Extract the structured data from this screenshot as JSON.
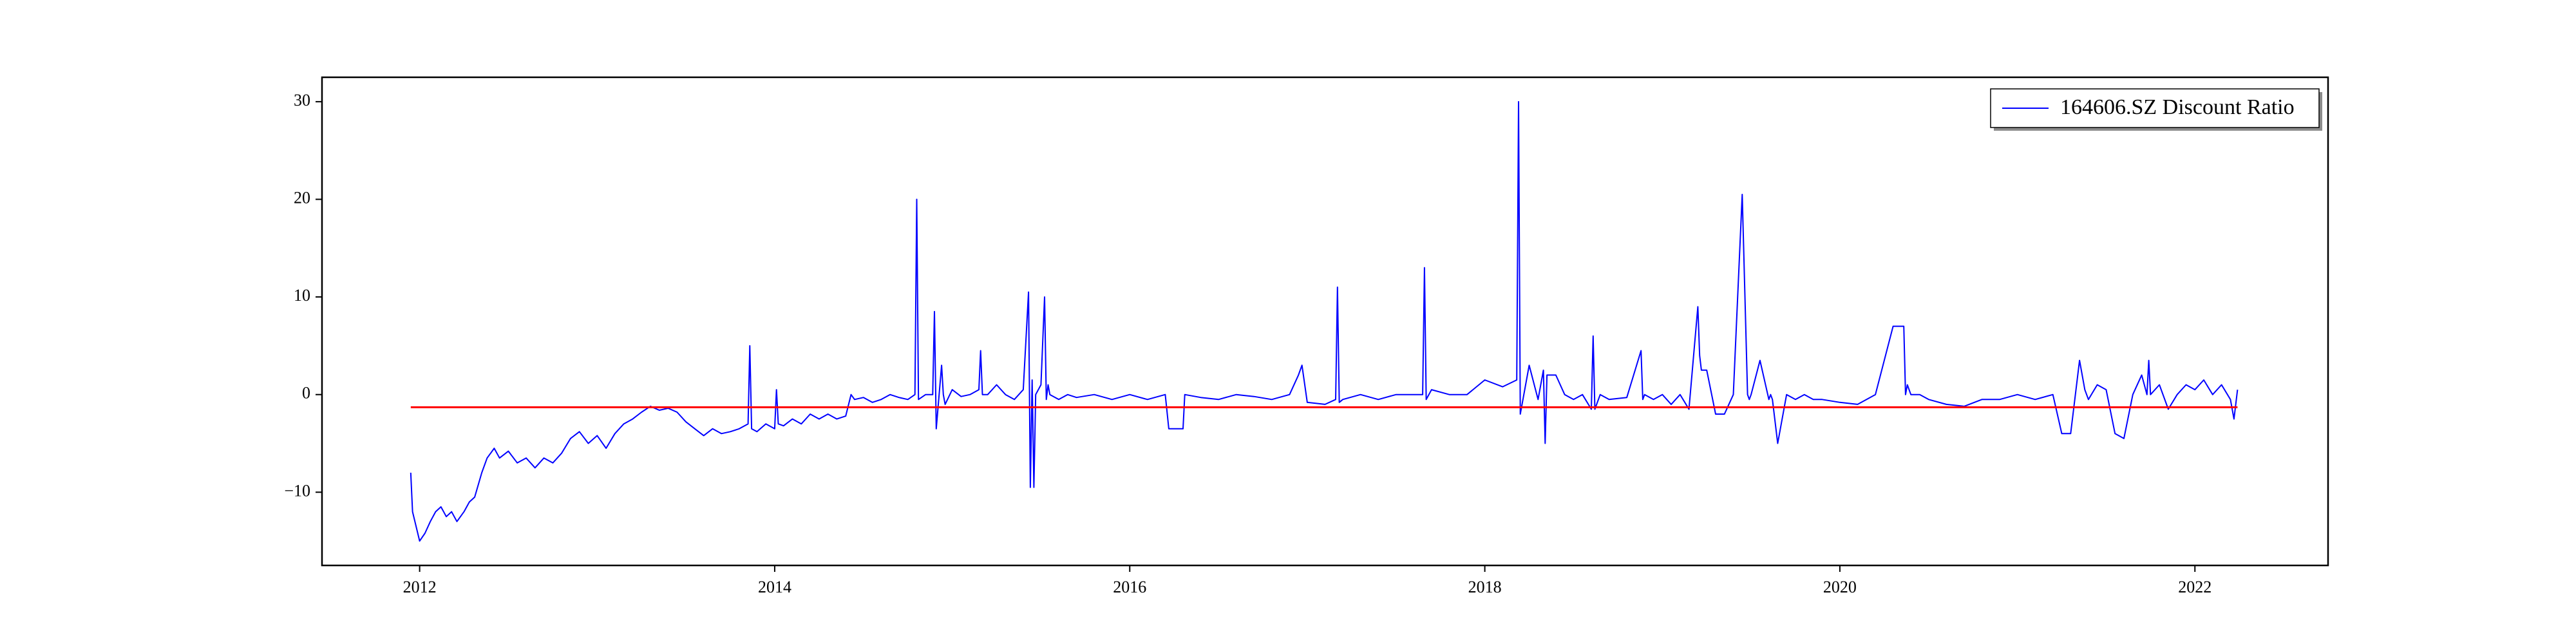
{
  "chart_data": {
    "type": "line",
    "title": "",
    "xlabel": "",
    "ylabel": "",
    "xlim": [
      2011.45,
      2022.75
    ],
    "ylim": [
      -17.5,
      32.5
    ],
    "x_ticks": [
      2012,
      2014,
      2016,
      2018,
      2020,
      2022
    ],
    "x_tick_labels": [
      "2012",
      "2014",
      "2016",
      "2018",
      "2020",
      "2022"
    ],
    "y_ticks": [
      -10,
      0,
      10,
      20,
      30
    ],
    "y_tick_labels": [
      "−10",
      "0",
      "10",
      "20",
      "30"
    ],
    "grid": false,
    "legend": {
      "position": "top-right",
      "entries": [
        "164606.SZ Discount Ratio"
      ]
    },
    "colors": {
      "series": "#0000ff",
      "reference": "#ff0000",
      "axes": "#000000"
    },
    "series": [
      {
        "name": "164606.SZ Discount Ratio",
        "x": [
          2011.95,
          2011.96,
          2011.98,
          2012.0,
          2012.03,
          2012.06,
          2012.09,
          2012.12,
          2012.15,
          2012.18,
          2012.21,
          2012.25,
          2012.28,
          2012.31,
          2012.35,
          2012.38,
          2012.42,
          2012.45,
          2012.5,
          2012.55,
          2012.6,
          2012.65,
          2012.7,
          2012.75,
          2012.8,
          2012.85,
          2012.9,
          2012.95,
          2013.0,
          2013.05,
          2013.1,
          2013.15,
          2013.2,
          2013.25,
          2013.3,
          2013.35,
          2013.4,
          2013.45,
          2013.5,
          2013.55,
          2013.6,
          2013.65,
          2013.7,
          2013.75,
          2013.8,
          2013.85,
          2013.86,
          2013.87,
          2013.9,
          2013.95,
          2014.0,
          2014.01,
          2014.02,
          2014.05,
          2014.1,
          2014.15,
          2014.2,
          2014.25,
          2014.3,
          2014.35,
          2014.4,
          2014.43,
          2014.45,
          2014.5,
          2014.55,
          2014.6,
          2014.65,
          2014.7,
          2014.75,
          2014.79,
          2014.8,
          2014.81,
          2014.85,
          2014.89,
          2014.9,
          2014.91,
          2014.94,
          2014.95,
          2014.96,
          2015.0,
          2015.05,
          2015.1,
          2015.15,
          2015.16,
          2015.17,
          2015.2,
          2015.25,
          2015.3,
          2015.35,
          2015.4,
          2015.43,
          2015.44,
          2015.45,
          2015.46,
          2015.47,
          2015.5,
          2015.52,
          2015.53,
          2015.54,
          2015.55,
          2015.6,
          2015.65,
          2015.7,
          2015.8,
          2015.9,
          2016.0,
          2016.1,
          2016.2,
          2016.22,
          2016.3,
          2016.31,
          2016.4,
          2016.5,
          2016.6,
          2016.7,
          2016.8,
          2016.9,
          2016.95,
          2016.97,
          2017.0,
          2017.1,
          2017.16,
          2017.17,
          2017.18,
          2017.2,
          2017.3,
          2017.4,
          2017.5,
          2017.6,
          2017.65,
          2017.66,
          2017.67,
          2017.7,
          2017.8,
          2017.9,
          2018.0,
          2018.1,
          2018.18,
          2018.19,
          2018.2,
          2018.25,
          2018.3,
          2018.33,
          2018.34,
          2018.35,
          2018.4,
          2018.45,
          2018.5,
          2018.55,
          2018.6,
          2018.61,
          2018.62,
          2018.65,
          2018.7,
          2018.8,
          2018.88,
          2018.89,
          2018.9,
          2018.95,
          2019.0,
          2019.05,
          2019.1,
          2019.15,
          2019.2,
          2019.21,
          2019.22,
          2019.25,
          2019.3,
          2019.35,
          2019.4,
          2019.45,
          2019.48,
          2019.49,
          2019.5,
          2019.55,
          2019.6,
          2019.61,
          2019.62,
          2019.65,
          2019.7,
          2019.75,
          2019.8,
          2019.85,
          2019.9,
          2020.0,
          2020.1,
          2020.2,
          2020.3,
          2020.36,
          2020.37,
          2020.38,
          2020.4,
          2020.45,
          2020.5,
          2020.6,
          2020.7,
          2020.8,
          2020.9,
          2021.0,
          2021.1,
          2021.2,
          2021.25,
          2021.3,
          2021.35,
          2021.38,
          2021.39,
          2021.4,
          2021.45,
          2021.5,
          2021.55,
          2021.6,
          2021.65,
          2021.7,
          2021.73,
          2021.74,
          2021.75,
          2021.8,
          2021.85,
          2021.9,
          2021.95,
          2022.0,
          2022.05,
          2022.1,
          2022.15,
          2022.2,
          2022.22,
          2022.24
        ],
        "y": [
          -8.0,
          -12.0,
          -13.5,
          -15.0,
          -14.2,
          -13.0,
          -12.0,
          -11.5,
          -12.5,
          -12.0,
          -13.0,
          -12.0,
          -11.0,
          -10.5,
          -8.0,
          -6.5,
          -5.5,
          -6.5,
          -5.8,
          -7.0,
          -6.5,
          -7.5,
          -6.5,
          -7.0,
          -6.0,
          -4.5,
          -3.8,
          -5.0,
          -4.2,
          -5.5,
          -4.0,
          -3.0,
          -2.5,
          -1.8,
          -1.2,
          -1.6,
          -1.4,
          -1.8,
          -2.8,
          -3.5,
          -4.2,
          -3.5,
          -4.0,
          -3.8,
          -3.5,
          -3.0,
          5.0,
          -3.5,
          -3.8,
          -3.0,
          -3.5,
          0.5,
          -3.0,
          -3.2,
          -2.5,
          -3.0,
          -2.0,
          -2.5,
          -2.0,
          -2.5,
          -2.2,
          0.0,
          -0.5,
          -0.3,
          -0.8,
          -0.5,
          0.0,
          -0.3,
          -0.5,
          0.0,
          20.0,
          -0.5,
          0.0,
          0.0,
          8.5,
          -3.5,
          3.0,
          0.0,
          -1.0,
          0.5,
          -0.2,
          0.0,
          0.5,
          4.5,
          0.0,
          0.0,
          1.0,
          0.0,
          -0.5,
          0.5,
          10.5,
          -9.5,
          1.5,
          -9.5,
          0.0,
          1.0,
          10.0,
          -0.5,
          1.0,
          0.0,
          -0.5,
          0.0,
          -0.3,
          0.0,
          -0.5,
          0.0,
          -0.5,
          0.0,
          -3.5,
          -3.5,
          0.0,
          -0.3,
          -0.5,
          0.0,
          -0.2,
          -0.5,
          0.0,
          2.0,
          3.0,
          -0.8,
          -1.0,
          -0.5,
          11.0,
          -0.8,
          -0.5,
          0.0,
          -0.5,
          0.0,
          0.0,
          0.0,
          13.0,
          -0.5,
          0.5,
          0.0,
          0.0,
          1.5,
          0.8,
          1.5,
          30.0,
          -2.0,
          3.0,
          -0.5,
          2.5,
          -5.0,
          2.0,
          2.0,
          0.0,
          -0.5,
          0.0,
          -1.5,
          6.0,
          -1.5,
          0.0,
          -0.5,
          -0.3,
          4.5,
          -0.5,
          0.0,
          -0.5,
          0.0,
          -1.0,
          0.0,
          -1.5,
          9.0,
          4.0,
          2.5,
          2.5,
          -2.0,
          -2.0,
          0.0,
          20.5,
          0.0,
          -0.5,
          0.0,
          3.5,
          -0.5,
          0.0,
          -0.5,
          -5.0,
          0.0,
          -0.5,
          0.0,
          -0.5,
          -0.5,
          -0.8,
          -1.0,
          0.0,
          7.0,
          7.0,
          0.0,
          1.0,
          0.0,
          0.0,
          -0.5,
          -1.0,
          -1.2,
          -0.5,
          -0.5,
          0.0,
          -0.5,
          0.0,
          -4.0,
          -4.0,
          3.5,
          0.5,
          0.0,
          -0.5,
          1.0,
          0.5,
          -4.0,
          -4.5,
          0.0,
          2.0,
          0.0,
          3.5,
          0.0,
          1.0,
          -1.5,
          0.0,
          1.0,
          0.5,
          1.5,
          0.0,
          1.0,
          -0.5,
          -2.5,
          0.5
        ]
      },
      {
        "name": "",
        "x": [
          2011.95,
          2022.24
        ],
        "y": [
          -1.3,
          -1.3
        ]
      }
    ]
  }
}
